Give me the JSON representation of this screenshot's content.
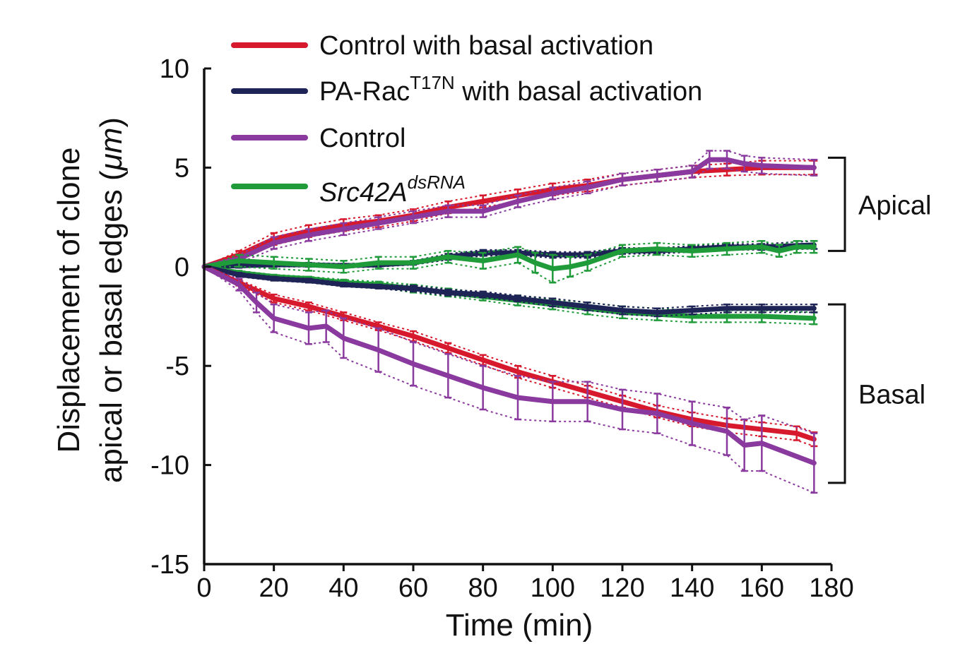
{
  "chart_data": {
    "type": "line",
    "xlabel": "Time (min)",
    "ylabel_line1": "Displacement of clone",
    "ylabel_line2": "apical or basal edges (",
    "ylabel_unit": "μm",
    "ylabel_close": ")",
    "xlim": [
      0,
      180
    ],
    "ylim": [
      -15,
      10
    ],
    "x_ticks": [
      0,
      20,
      40,
      60,
      80,
      100,
      120,
      140,
      160,
      180
    ],
    "y_ticks": [
      10,
      5,
      0,
      -5,
      -10,
      -15
    ],
    "grid": false,
    "legend_position": "top-left",
    "legend": [
      {
        "label": "Control with basal activation",
        "color": "#d7192e"
      },
      {
        "label": "PA-Rac",
        "sup": "T17N",
        "after": " with basal activation",
        "color": "#1f2456"
      },
      {
        "label": "Control",
        "color": "#8a3a9e"
      },
      {
        "label": "Src42A",
        "sup": "dsRNA",
        "after": "",
        "italic": true,
        "color": "#1f9b3a"
      }
    ],
    "brackets": [
      {
        "label": "Apical",
        "y_top": 5.5,
        "y_bottom": 0.8
      },
      {
        "label": "Basal",
        "y_top": -1.9,
        "y_bottom": -10.9
      }
    ],
    "series": [
      {
        "name": "Control with basal activation (apical)",
        "color": "#d7192e",
        "x": [
          0,
          10,
          20,
          30,
          40,
          50,
          60,
          70,
          80,
          90,
          100,
          110,
          120,
          130,
          140,
          150,
          160,
          175
        ],
        "y": [
          0,
          0.6,
          1.4,
          1.8,
          2.1,
          2.3,
          2.6,
          3.0,
          3.3,
          3.6,
          3.9,
          4.1,
          4.4,
          4.6,
          4.8,
          4.9,
          5.0,
          5.0
        ],
        "err": [
          0,
          0.2,
          0.3,
          0.3,
          0.3,
          0.3,
          0.3,
          0.3,
          0.3,
          0.3,
          0.3,
          0.3,
          0.3,
          0.3,
          0.3,
          0.3,
          0.35,
          0.35
        ]
      },
      {
        "name": "Control (apical)",
        "color": "#8a3a9e",
        "x": [
          0,
          10,
          20,
          30,
          40,
          50,
          60,
          70,
          80,
          90,
          100,
          110,
          120,
          130,
          140,
          145,
          150,
          155,
          160,
          175
        ],
        "y": [
          0,
          0.4,
          1.2,
          1.6,
          1.9,
          2.2,
          2.5,
          2.8,
          2.8,
          3.3,
          3.7,
          4.0,
          4.4,
          4.6,
          4.8,
          5.4,
          5.4,
          5.2,
          5.1,
          5.0
        ],
        "err": [
          0,
          0.2,
          0.3,
          0.3,
          0.3,
          0.3,
          0.3,
          0.3,
          0.3,
          0.3,
          0.3,
          0.3,
          0.3,
          0.3,
          0.3,
          0.45,
          0.45,
          0.4,
          0.4,
          0.4
        ]
      },
      {
        "name": "PA-RacT17N with basal activation (apical)",
        "color": "#1f2456",
        "x": [
          0,
          10,
          20,
          30,
          40,
          50,
          60,
          70,
          80,
          90,
          100,
          110,
          120,
          130,
          140,
          150,
          160,
          175
        ],
        "y": [
          0,
          0.05,
          0.1,
          0.1,
          0.05,
          0.1,
          0.2,
          0.5,
          0.7,
          0.7,
          0.6,
          0.6,
          0.8,
          0.8,
          0.9,
          1.0,
          1.0,
          1.1
        ],
        "err": [
          0,
          0.1,
          0.1,
          0.1,
          0.1,
          0.1,
          0.1,
          0.15,
          0.15,
          0.15,
          0.15,
          0.15,
          0.15,
          0.15,
          0.15,
          0.15,
          0.15,
          0.2
        ]
      },
      {
        "name": "Src42A dsRNA (apical)",
        "color": "#1f9b3a",
        "x": [
          0,
          10,
          20,
          30,
          40,
          50,
          60,
          70,
          80,
          90,
          95,
          100,
          105,
          110,
          120,
          130,
          140,
          150,
          160,
          165,
          170,
          175
        ],
        "y": [
          0,
          0.3,
          0.2,
          0.1,
          0.0,
          0.2,
          0.2,
          0.5,
          0.3,
          0.6,
          0.2,
          -0.1,
          0.0,
          0.2,
          0.8,
          0.9,
          0.8,
          0.9,
          1.0,
          0.8,
          1.0,
          1.0
        ],
        "err": [
          0,
          0.3,
          0.3,
          0.3,
          0.3,
          0.3,
          0.3,
          0.3,
          0.4,
          0.4,
          0.5,
          0.7,
          0.5,
          0.4,
          0.3,
          0.3,
          0.3,
          0.3,
          0.3,
          0.3,
          0.3,
          0.3
        ]
      },
      {
        "name": "Src42A dsRNA (basal)",
        "color": "#1f9b3a",
        "x": [
          0,
          10,
          20,
          30,
          40,
          50,
          60,
          70,
          80,
          90,
          100,
          110,
          120,
          130,
          140,
          150,
          160,
          175
        ],
        "y": [
          0,
          -0.3,
          -0.5,
          -0.6,
          -0.8,
          -0.9,
          -1.1,
          -1.3,
          -1.5,
          -1.7,
          -1.9,
          -2.1,
          -2.3,
          -2.4,
          -2.5,
          -2.5,
          -2.5,
          -2.6
        ],
        "err": [
          0,
          0.1,
          0.1,
          0.1,
          0.15,
          0.15,
          0.2,
          0.2,
          0.2,
          0.25,
          0.25,
          0.3,
          0.3,
          0.3,
          0.3,
          0.3,
          0.3,
          0.3
        ]
      },
      {
        "name": "PA-RacT17N with basal activation (basal)",
        "color": "#1f2456",
        "x": [
          0,
          10,
          20,
          30,
          40,
          50,
          60,
          70,
          80,
          90,
          100,
          110,
          120,
          130,
          140,
          150,
          160,
          175
        ],
        "y": [
          0,
          -0.4,
          -0.6,
          -0.7,
          -0.9,
          -1.0,
          -1.1,
          -1.3,
          -1.4,
          -1.6,
          -1.8,
          -2.0,
          -2.2,
          -2.3,
          -2.2,
          -2.1,
          -2.1,
          -2.1
        ],
        "err": [
          0,
          0.1,
          0.1,
          0.1,
          0.1,
          0.1,
          0.15,
          0.15,
          0.15,
          0.15,
          0.2,
          0.2,
          0.2,
          0.2,
          0.2,
          0.2,
          0.2,
          0.2
        ]
      },
      {
        "name": "Control with basal activation (basal)",
        "color": "#d7192e",
        "x": [
          0,
          10,
          20,
          30,
          40,
          50,
          60,
          70,
          80,
          90,
          100,
          110,
          120,
          130,
          140,
          150,
          160,
          170,
          175
        ],
        "y": [
          0,
          -0.8,
          -1.6,
          -2.0,
          -2.5,
          -3.0,
          -3.5,
          -4.1,
          -4.7,
          -5.3,
          -5.8,
          -6.3,
          -6.8,
          -7.3,
          -7.7,
          -8.0,
          -8.2,
          -8.4,
          -8.7
        ],
        "err": [
          0,
          0.15,
          0.2,
          0.2,
          0.2,
          0.2,
          0.25,
          0.25,
          0.25,
          0.3,
          0.3,
          0.3,
          0.3,
          0.3,
          0.35,
          0.35,
          0.35,
          0.35,
          0.35
        ]
      },
      {
        "name": "Control (basal)",
        "color": "#8a3a9e",
        "x": [
          0,
          10,
          15,
          20,
          30,
          35,
          40,
          50,
          60,
          70,
          80,
          90,
          100,
          110,
          120,
          130,
          140,
          150,
          155,
          160,
          175
        ],
        "y": [
          0,
          -0.9,
          -1.8,
          -2.6,
          -3.1,
          -3.0,
          -3.6,
          -4.2,
          -4.9,
          -5.5,
          -6.1,
          -6.6,
          -6.8,
          -6.8,
          -7.2,
          -7.4,
          -7.9,
          -8.3,
          -9.0,
          -8.9,
          -9.9
        ],
        "err": [
          0,
          0.3,
          0.5,
          0.7,
          0.8,
          0.8,
          1.0,
          1.1,
          1.1,
          1.1,
          1.1,
          1.1,
          1.0,
          1.0,
          1.0,
          1.0,
          1.1,
          1.2,
          1.3,
          1.4,
          1.5
        ]
      }
    ]
  }
}
